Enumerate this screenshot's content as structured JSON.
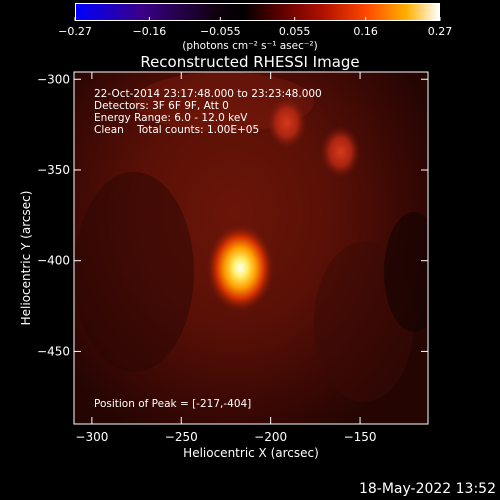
{
  "colorbar": {
    "ticks": [
      "-0.27",
      "-0.16",
      "-0.055",
      "0.055",
      "0.16",
      "0.27"
    ],
    "tick_values": [
      -0.27,
      -0.16,
      -0.055,
      0.055,
      0.16,
      0.27
    ],
    "range": [
      -0.27,
      0.27
    ],
    "units_label": "(photons cm⁻² s⁻¹ asec⁻²)",
    "colors": [
      "#0000ff",
      "#3a0088",
      "#000000",
      "#8b0000",
      "#ff4000",
      "#ffb000",
      "#ffffff"
    ]
  },
  "chart_data": {
    "type": "heatmap",
    "title": "Reconstructed RHESSI Image",
    "xlabel": "Heliocentric X (arcsec)",
    "ylabel": "Heliocentric Y (arcsec)",
    "xlim": [
      -310,
      -112
    ],
    "ylim": [
      -490,
      -296
    ],
    "xticks": [
      -300,
      -250,
      -200,
      -150
    ],
    "yticks": [
      -300,
      -350,
      -400,
      -450
    ],
    "xtick_labels": [
      "−300",
      "−250",
      "−200",
      "−150"
    ],
    "ytick_labels": [
      "−300",
      "−350",
      "−400",
      "−450"
    ],
    "sources": [
      {
        "x": -217,
        "y": -404,
        "intensity": 0.27
      },
      {
        "x": -161,
        "y": -340,
        "intensity": 0.1
      },
      {
        "x": -191,
        "y": -324,
        "intensity": 0.08
      }
    ],
    "peak_position": [
      -217,
      -404
    ],
    "annotations": [
      "22-Oct-2014 23:17:48.000 to 23:23:48.000",
      "Detectors: 3F 6F 9F, Att 0",
      "Energy Range: 6.0 - 12.0 keV",
      "Clean    Total counts: 1.00E+05",
      "Position of Peak = [-217,-404]"
    ]
  },
  "timestamp": "18-May-2022 13:52"
}
